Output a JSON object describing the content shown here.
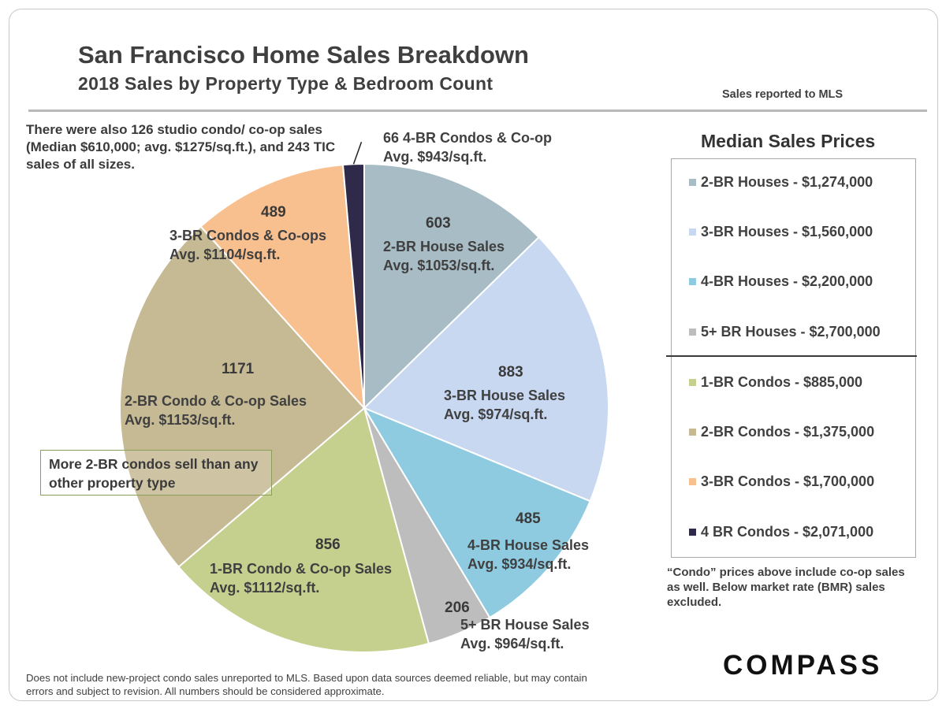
{
  "title": "San Francisco Home Sales Breakdown",
  "subtitle": "2018 Sales by Property Type & Bedroom Count",
  "source_note": "Sales reported to MLS",
  "studio_note": "There were also 126 studio condo/ co-op sales (Median $610,000; avg. $1275/sq.ft.), and 243 TIC sales of all sizes.",
  "callout": "More 2-BR condos sell than any other property type",
  "legend": {
    "title": "Median Sales Prices",
    "items": [
      {
        "label": "2-BR Houses - $1,274,000",
        "color": "#a7bcc5"
      },
      {
        "label": "3-BR Houses - $1,560,000",
        "color": "#c8d8f0"
      },
      {
        "label": "4-BR Houses - $2,200,000",
        "color": "#8fcbe0"
      },
      {
        "label": "5+ BR Houses - $2,700,000",
        "color": "#bdbdbd"
      },
      {
        "label": "1-BR Condos - $885,000",
        "color": "#c5d08f"
      },
      {
        "label": "2-BR Condos - $1,375,000",
        "color": "#c6ba94"
      },
      {
        "label": "3-BR Condos - $1,700,000",
        "color": "#f8bf8f"
      },
      {
        "label": "4 BR Condos - $2,071,000",
        "color": "#2f2a4a"
      }
    ],
    "footnote": "“Condo” prices above include co-op sales as well. Below market rate (BMR) sales excluded."
  },
  "disclaimer": "Does not include new-project condo sales unreported to MLS.  Based upon data sources deemed reliable, but may contain errors and subject to revision. All numbers should be considered approximate.",
  "logo_text": "COMPASS",
  "chart_data": {
    "type": "pie",
    "title": "San Francisco Home Sales Breakdown",
    "subtitle": "2018 Sales by Property Type & Bedroom Count",
    "slices": [
      {
        "value": 603,
        "value_label": "603",
        "line1": "2-BR House Sales",
        "line2": "Avg. $1053/sq.ft.",
        "color": "#a7bcc5"
      },
      {
        "value": 883,
        "value_label": "883",
        "line1": "3-BR House Sales",
        "line2": "Avg. $974/sq.ft.",
        "color": "#c8d8f0"
      },
      {
        "value": 485,
        "value_label": "485",
        "line1": "4-BR House Sales",
        "line2": "Avg. $934/sq.ft.",
        "color": "#8fcbe0"
      },
      {
        "value": 206,
        "value_label": "206",
        "line1": "5+ BR House Sales",
        "line2": "Avg. $964/sq.ft.",
        "color": "#bdbdbd"
      },
      {
        "value": 856,
        "value_label": "856",
        "line1": "1-BR Condo & Co-op Sales",
        "line2": "Avg. $1112/sq.ft.",
        "color": "#c5d08f"
      },
      {
        "value": 1171,
        "value_label": "1171",
        "line1": "2-BR Condo & Co-op Sales",
        "line2": "Avg. $1153/sq.ft.",
        "color": "#c6ba94"
      },
      {
        "value": 489,
        "value_label": "489",
        "line1": "3-BR Condos & Co-ops",
        "line2": "Avg. $1104/sq.ft.",
        "color": "#f8bf8f"
      },
      {
        "value": 66,
        "value_label": "",
        "line1": "66 4-BR Condos & Co-op",
        "line2": "Avg. $943/sq.ft.",
        "color": "#2f2a4a"
      }
    ]
  }
}
